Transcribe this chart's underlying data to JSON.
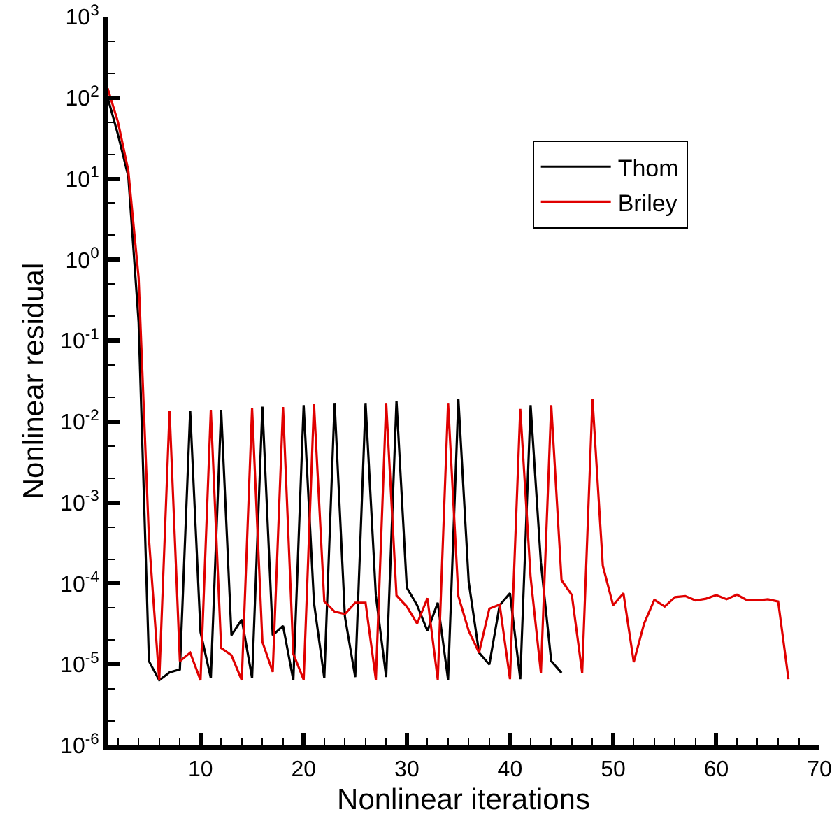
{
  "chart_data": {
    "type": "line",
    "xlabel": "Nonlinear iterations",
    "ylabel": "Nonlinear residual",
    "log": "y",
    "grid": false,
    "legend": "top right",
    "marker": "none",
    "line_style": "solid",
    "xlim": [
      1,
      70
    ],
    "xticks": [
      10,
      20,
      30,
      40,
      50,
      60,
      70
    ],
    "ylim": [
      1e-06,
      1000
    ],
    "yticks": [
      {
        "value": 1e-06,
        "label": "10$^{-6}$"
      },
      {
        "value": 1e-05,
        "label": "10$^{-5}$"
      },
      {
        "value": 0.0001,
        "label": "10$^{-4}$"
      },
      {
        "value": 0.001,
        "label": "10$^{-3}$"
      },
      {
        "value": 0.01,
        "label": "10$^{-2}$"
      },
      {
        "value": 0.1,
        "label": "10$^{-1}$"
      },
      {
        "value": 1,
        "label": "10$^{0}$"
      },
      {
        "value": 10,
        "label": "10$^{1}$"
      },
      {
        "value": 100,
        "label": "10$^{2}$"
      },
      {
        "value": 1000,
        "label": "10$^{3}$"
      }
    ],
    "series": [
      {
        "name": "Thom",
        "color": "#000000",
        "x": [
          1,
          2,
          3,
          4,
          5,
          6,
          7,
          8,
          9,
          10,
          11,
          12,
          13,
          14,
          15,
          16,
          17,
          18,
          19,
          20,
          21,
          22,
          23,
          24,
          25,
          26,
          27,
          28,
          29,
          30,
          31,
          32,
          33,
          34,
          35,
          36,
          37,
          38,
          39,
          40,
          41,
          42,
          43,
          44,
          45
        ],
        "values": [
          100,
          35,
          10.7,
          0.17,
          1.1e-05,
          6.4e-06,
          8e-06,
          8.7e-06,
          0.0135,
          2.5e-05,
          6.8e-06,
          0.014,
          2.3e-05,
          3.6e-05,
          6.8e-06,
          0.0153,
          2.3e-05,
          3e-05,
          6.4e-06,
          0.016,
          5.8e-05,
          6.8e-06,
          0.017,
          3.9e-05,
          7e-06,
          0.017,
          7.1e-05,
          7e-06,
          0.018,
          8.9e-05,
          5.4e-05,
          2.6e-05,
          5.8e-05,
          6.5e-06,
          0.019,
          0.000105,
          1.4e-05,
          1e-05,
          5.4e-05,
          7.6e-05,
          6.6e-06,
          0.016,
          0.00018,
          1.1e-05,
          7.9e-06
        ]
      },
      {
        "name": "Briley",
        "color": "#e00000",
        "x": [
          1,
          2,
          3,
          4,
          5,
          6,
          7,
          8,
          9,
          10,
          11,
          12,
          13,
          14,
          15,
          16,
          17,
          18,
          19,
          20,
          21,
          22,
          23,
          24,
          25,
          26,
          27,
          28,
          29,
          30,
          31,
          32,
          33,
          34,
          35,
          36,
          37,
          38,
          39,
          40,
          41,
          42,
          43,
          44,
          45,
          46,
          47,
          48,
          49,
          50,
          51,
          52,
          53,
          54,
          55,
          56,
          57,
          58,
          59,
          60,
          61,
          62,
          63,
          64,
          65,
          66,
          67
        ],
        "values": [
          130,
          50,
          12.6,
          0.6,
          0.00036,
          6.4e-06,
          0.0135,
          1.1e-05,
          1.4e-05,
          6.4e-06,
          0.014,
          1.6e-05,
          1.3e-05,
          6.4e-06,
          0.0147,
          1.9e-05,
          8.1e-06,
          0.0151,
          1.35e-05,
          6.5e-06,
          0.0166,
          6e-05,
          4.5e-05,
          4.2e-05,
          5.8e-05,
          5.8e-05,
          6.5e-06,
          0.017,
          7.1e-05,
          5.2e-05,
          3.2e-05,
          6.6e-05,
          6.5e-06,
          0.017,
          7e-05,
          2.6e-05,
          1.4e-05,
          4.9e-05,
          5.5e-05,
          6.6e-06,
          0.0143,
          0.00012,
          7.9e-06,
          0.016,
          0.00011,
          7.2e-05,
          7.9e-06,
          0.019,
          0.000166,
          5.4e-05,
          7.6e-05,
          1.07e-05,
          3.2e-05,
          6.3e-05,
          5.2e-05,
          6.8e-05,
          7e-05,
          6.2e-05,
          6.5e-05,
          7.2e-05,
          6.4e-05,
          7.3e-05,
          6.2e-05,
          6.2e-05,
          6.4e-05,
          6e-05,
          6.6e-06
        ]
      }
    ]
  }
}
